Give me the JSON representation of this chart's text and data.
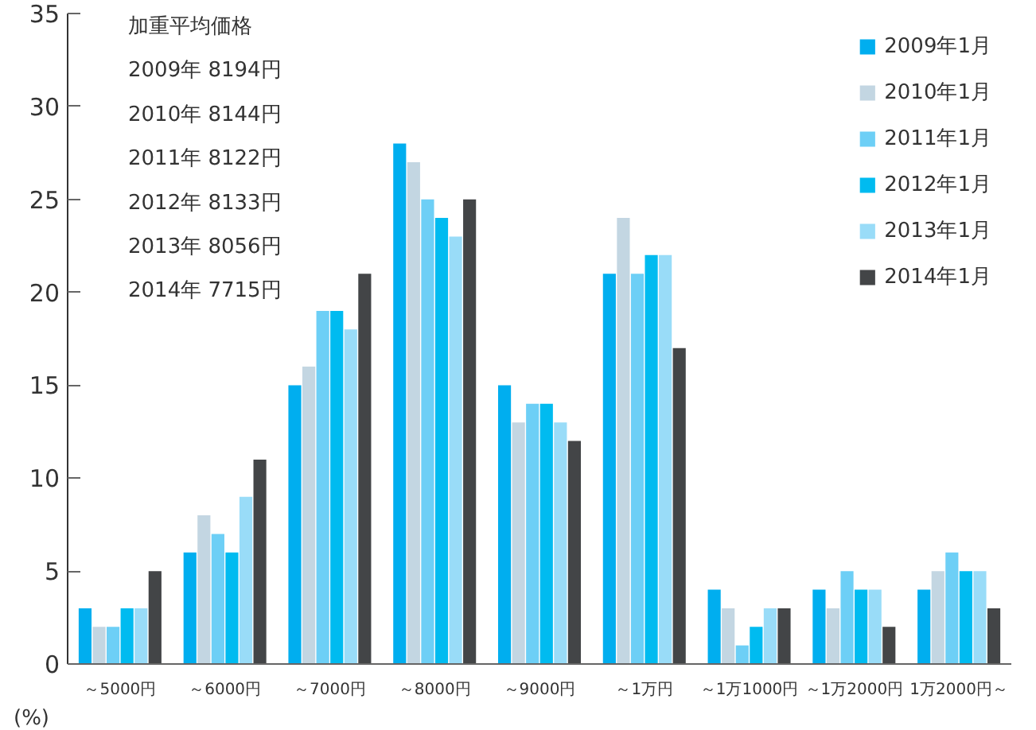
{
  "chart_data": {
    "type": "bar",
    "ylabel": "(%)",
    "categories": [
      "～5000円",
      "～6000円",
      "～7000円",
      "～8000円",
      "～9000円",
      "～1万円",
      "～1万1000円",
      "～1万2000円",
      "1万2000円～"
    ],
    "series": [
      {
        "name": "2009年1月",
        "color": "#00aeef",
        "values": [
          3,
          6,
          15,
          28,
          15,
          21,
          4,
          4,
          4
        ]
      },
      {
        "name": "2010年1月",
        "color": "#c3d6e2",
        "values": [
          2,
          8,
          16,
          27,
          13,
          24,
          3,
          3,
          5
        ]
      },
      {
        "name": "2011年1月",
        "color": "#6dcff6",
        "values": [
          2,
          7,
          19,
          25,
          14,
          21,
          1,
          5,
          6
        ]
      },
      {
        "name": "2012年1月",
        "color": "#00bbf0",
        "values": [
          3,
          6,
          19,
          24,
          14,
          22,
          2,
          4,
          5
        ]
      },
      {
        "name": "2013年1月",
        "color": "#99dcf8",
        "values": [
          3,
          9,
          18,
          23,
          13,
          22,
          3,
          4,
          5
        ]
      },
      {
        "name": "2014年1月",
        "color": "#434547",
        "values": [
          5,
          11,
          21,
          25,
          12,
          17,
          3,
          2,
          3
        ]
      }
    ],
    "ylim": [
      0,
      35
    ],
    "yticks": [
      0,
      5,
      10,
      15,
      20,
      25,
      30,
      35
    ],
    "grid": false,
    "legend": "top right",
    "annotations": [
      "加重平均価格",
      "2009年 8194円",
      "2010年 8144円",
      "2011年 8122円",
      "2012年 8133円",
      "2013年 8056円",
      "2014年 7715円"
    ]
  }
}
